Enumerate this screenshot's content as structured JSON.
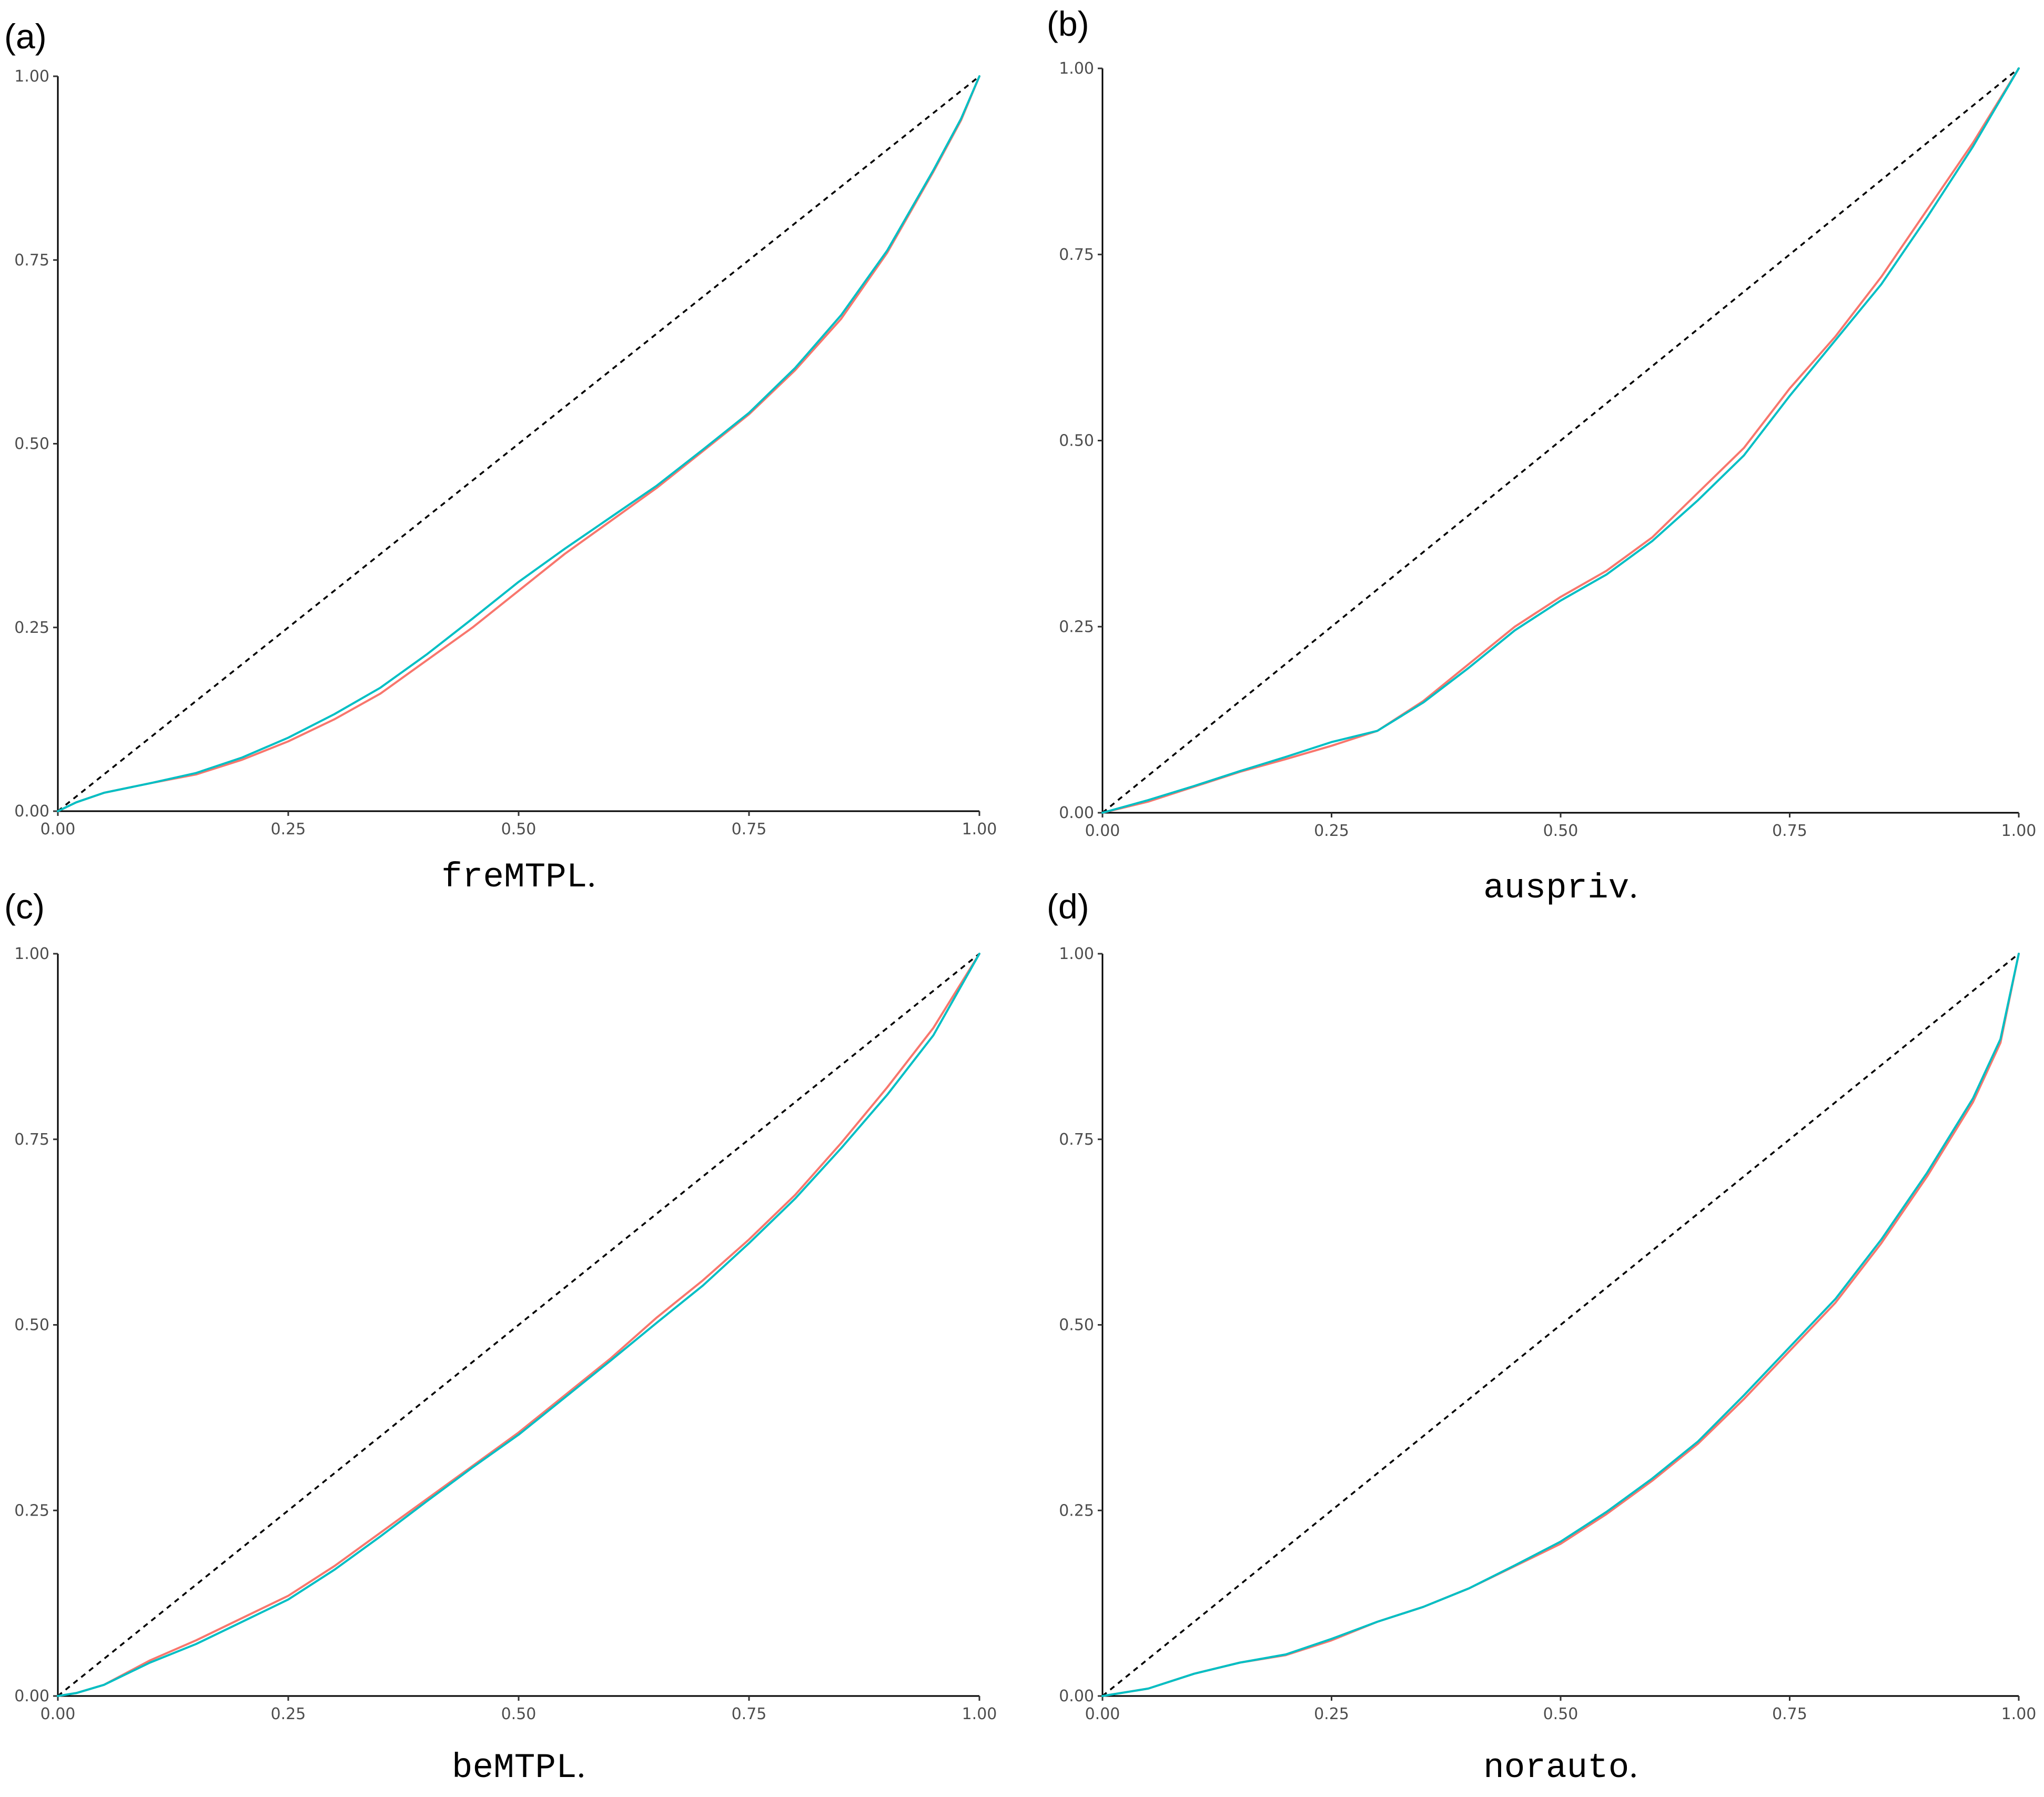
{
  "colors": {
    "series_red": "#f8766d",
    "series_teal": "#00bfc4",
    "reference": "#000000"
  },
  "chart_data": [
    {
      "type": "line",
      "panel_label": "(a)",
      "caption_name": "freMTPL",
      "caption_suffix": ".",
      "xlim": [
        0,
        1
      ],
      "ylim": [
        0,
        1
      ],
      "x_ticks": [
        "0.00",
        "0.25",
        "0.50",
        "0.75",
        "1.00"
      ],
      "y_ticks": [
        "0.00",
        "0.25",
        "0.50",
        "0.75",
        "1.00"
      ],
      "reference_line": {
        "style": "dashed",
        "from": [
          0,
          0
        ],
        "to": [
          1,
          1
        ]
      },
      "series": [
        {
          "color": "#f8766d",
          "x": [
            0,
            0.02,
            0.05,
            0.1,
            0.15,
            0.2,
            0.25,
            0.3,
            0.35,
            0.4,
            0.45,
            0.5,
            0.55,
            0.6,
            0.65,
            0.7,
            0.75,
            0.8,
            0.85,
            0.9,
            0.95,
            0.98,
            1.0
          ],
          "values": [
            0,
            0.012,
            0.025,
            0.038,
            0.05,
            0.07,
            0.095,
            0.125,
            0.16,
            0.205,
            0.25,
            0.3,
            0.35,
            0.395,
            0.44,
            0.49,
            0.54,
            0.6,
            0.67,
            0.76,
            0.87,
            0.94,
            1.0
          ]
        },
        {
          "color": "#00bfc4",
          "x": [
            0,
            0.02,
            0.05,
            0.1,
            0.15,
            0.2,
            0.25,
            0.3,
            0.35,
            0.4,
            0.45,
            0.5,
            0.55,
            0.6,
            0.65,
            0.7,
            0.75,
            0.8,
            0.85,
            0.9,
            0.95,
            0.98,
            1.0
          ],
          "values": [
            0,
            0.012,
            0.025,
            0.038,
            0.052,
            0.073,
            0.1,
            0.132,
            0.168,
            0.213,
            0.262,
            0.312,
            0.357,
            0.4,
            0.443,
            0.492,
            0.542,
            0.603,
            0.675,
            0.763,
            0.872,
            0.942,
            1.0
          ]
        }
      ]
    },
    {
      "type": "line",
      "panel_label": "(b)",
      "caption_name": "auspriv",
      "caption_suffix": ".",
      "xlim": [
        0,
        1
      ],
      "ylim": [
        0,
        1
      ],
      "x_ticks": [
        "0.00",
        "0.25",
        "0.50",
        "0.75",
        "1.00"
      ],
      "y_ticks": [
        "0.00",
        "0.25",
        "0.50",
        "0.75",
        "1.00"
      ],
      "reference_line": {
        "style": "dashed",
        "from": [
          0,
          0
        ],
        "to": [
          1,
          1
        ]
      },
      "series": [
        {
          "color": "#f8766d",
          "x": [
            0,
            0.05,
            0.1,
            0.15,
            0.2,
            0.25,
            0.3,
            0.35,
            0.4,
            0.45,
            0.5,
            0.55,
            0.6,
            0.65,
            0.7,
            0.75,
            0.8,
            0.85,
            0.9,
            0.95,
            1.0
          ],
          "values": [
            0,
            0.015,
            0.035,
            0.055,
            0.072,
            0.09,
            0.11,
            0.15,
            0.2,
            0.25,
            0.29,
            0.325,
            0.37,
            0.43,
            0.49,
            0.57,
            0.64,
            0.72,
            0.81,
            0.9,
            1.0
          ]
        },
        {
          "color": "#00bfc4",
          "x": [
            0,
            0.05,
            0.1,
            0.15,
            0.2,
            0.25,
            0.3,
            0.35,
            0.4,
            0.45,
            0.5,
            0.55,
            0.6,
            0.65,
            0.7,
            0.75,
            0.8,
            0.85,
            0.9,
            0.95,
            1.0
          ],
          "values": [
            0,
            0.017,
            0.036,
            0.056,
            0.075,
            0.095,
            0.11,
            0.148,
            0.195,
            0.245,
            0.285,
            0.32,
            0.365,
            0.42,
            0.48,
            0.56,
            0.635,
            0.71,
            0.8,
            0.895,
            1.0
          ]
        }
      ]
    },
    {
      "type": "line",
      "panel_label": "(c)",
      "caption_name": "beMTPL",
      "caption_suffix": ".",
      "xlim": [
        0,
        1
      ],
      "ylim": [
        0,
        1
      ],
      "x_ticks": [
        "0.00",
        "0.25",
        "0.50",
        "0.75",
        "1.00"
      ],
      "y_ticks": [
        "0.00",
        "0.25",
        "0.50",
        "0.75",
        "1.00"
      ],
      "reference_line": {
        "style": "dashed",
        "from": [
          0,
          0
        ],
        "to": [
          1,
          1
        ]
      },
      "series": [
        {
          "color": "#f8766d",
          "x": [
            0,
            0.02,
            0.05,
            0.1,
            0.15,
            0.2,
            0.25,
            0.3,
            0.35,
            0.4,
            0.45,
            0.5,
            0.55,
            0.6,
            0.65,
            0.7,
            0.75,
            0.8,
            0.85,
            0.9,
            0.95,
            1.0
          ],
          "values": [
            0,
            0.004,
            0.015,
            0.048,
            0.075,
            0.105,
            0.135,
            0.175,
            0.22,
            0.265,
            0.31,
            0.355,
            0.405,
            0.455,
            0.51,
            0.56,
            0.615,
            0.675,
            0.745,
            0.82,
            0.9,
            1.0
          ]
        },
        {
          "color": "#00bfc4",
          "x": [
            0,
            0.02,
            0.05,
            0.1,
            0.15,
            0.2,
            0.25,
            0.3,
            0.35,
            0.4,
            0.45,
            0.5,
            0.55,
            0.6,
            0.65,
            0.7,
            0.75,
            0.8,
            0.85,
            0.9,
            0.95,
            1.0
          ],
          "values": [
            0,
            0.004,
            0.015,
            0.045,
            0.07,
            0.1,
            0.13,
            0.17,
            0.215,
            0.262,
            0.308,
            0.352,
            0.402,
            0.452,
            0.503,
            0.553,
            0.61,
            0.67,
            0.738,
            0.81,
            0.89,
            1.0
          ]
        }
      ]
    },
    {
      "type": "line",
      "panel_label": "(d)",
      "caption_name": "norauto",
      "caption_suffix": ".",
      "xlim": [
        0,
        1
      ],
      "ylim": [
        0,
        1
      ],
      "x_ticks": [
        "0.00",
        "0.25",
        "0.50",
        "0.75",
        "1.00"
      ],
      "y_ticks": [
        "0.00",
        "0.25",
        "0.50",
        "0.75",
        "1.00"
      ],
      "reference_line": {
        "style": "dashed",
        "from": [
          0,
          0
        ],
        "to": [
          1,
          1
        ]
      },
      "series": [
        {
          "color": "#f8766d",
          "x": [
            0,
            0.05,
            0.1,
            0.15,
            0.2,
            0.25,
            0.3,
            0.35,
            0.4,
            0.45,
            0.5,
            0.55,
            0.6,
            0.65,
            0.7,
            0.75,
            0.8,
            0.85,
            0.9,
            0.95,
            0.98,
            1.0
          ],
          "values": [
            0,
            0.01,
            0.03,
            0.045,
            0.055,
            0.075,
            0.1,
            0.12,
            0.145,
            0.175,
            0.205,
            0.245,
            0.29,
            0.34,
            0.4,
            0.465,
            0.53,
            0.61,
            0.7,
            0.8,
            0.88,
            1.0
          ]
        },
        {
          "color": "#00bfc4",
          "x": [
            0,
            0.05,
            0.1,
            0.15,
            0.2,
            0.25,
            0.3,
            0.35,
            0.4,
            0.45,
            0.5,
            0.55,
            0.6,
            0.65,
            0.7,
            0.75,
            0.8,
            0.85,
            0.9,
            0.95,
            0.98,
            1.0
          ],
          "values": [
            0,
            0.01,
            0.03,
            0.045,
            0.056,
            0.077,
            0.1,
            0.12,
            0.145,
            0.176,
            0.208,
            0.248,
            0.293,
            0.343,
            0.405,
            0.47,
            0.535,
            0.615,
            0.705,
            0.805,
            0.885,
            1.0
          ]
        }
      ]
    }
  ]
}
